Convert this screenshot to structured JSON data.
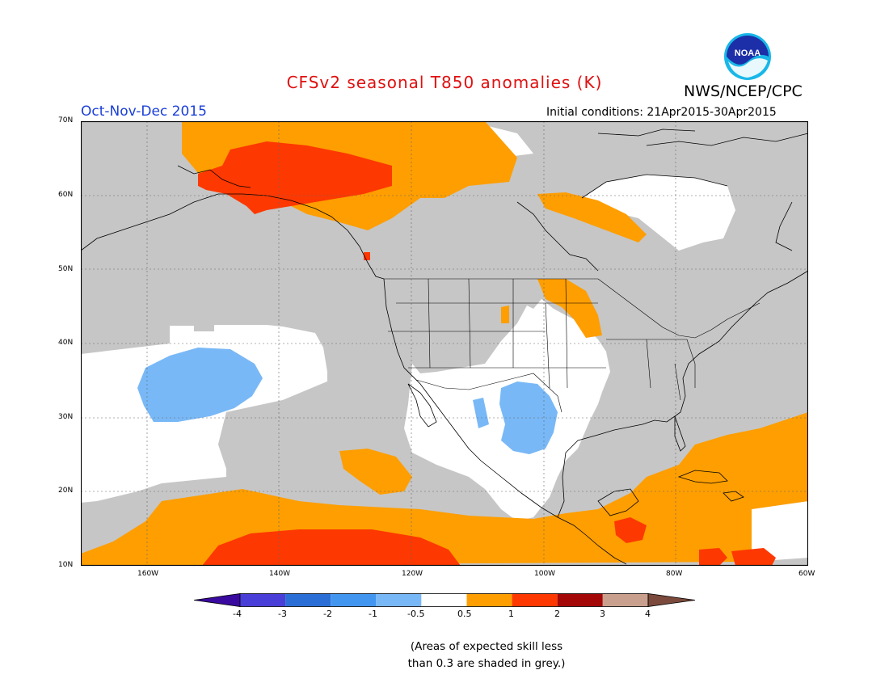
{
  "header": {
    "title": "CFSv2 seasonal T850 anomalies (K)",
    "agency": "NWS/NCEP/CPC",
    "logo_text": "NOAA",
    "period": "Oct-Nov-Dec 2015",
    "initial_conditions": "Initial conditions: 21Apr2015-30Apr2015"
  },
  "map": {
    "lat_labels": [
      "70N",
      "60N",
      "50N",
      "40N",
      "30N",
      "20N",
      "10N"
    ],
    "lon_labels": [
      "160W",
      "140W",
      "120W",
      "100W",
      "80W",
      "60W"
    ],
    "region": "North America and eastern Pacific"
  },
  "colorbar": {
    "labels": [
      "-4",
      "-3",
      "-2",
      "-1",
      "-0.5",
      "0.5",
      "1",
      "2",
      "3",
      "4"
    ],
    "colors": [
      "#3a0aa0",
      "#4a3ed8",
      "#2b6fd6",
      "#4296f0",
      "#79b8f6",
      "#ffffff",
      "#fe9e00",
      "#fd3800",
      "#a30707",
      "#c9a08e",
      "#7b4a3c"
    ]
  },
  "colors": {
    "grey_low_skill": "#c6c6c6",
    "title_red": "#e01010",
    "period_blue": "#1a3fd8"
  },
  "note": "(Areas of expected skill less\nthan 0.3 are shaded in grey.)"
}
